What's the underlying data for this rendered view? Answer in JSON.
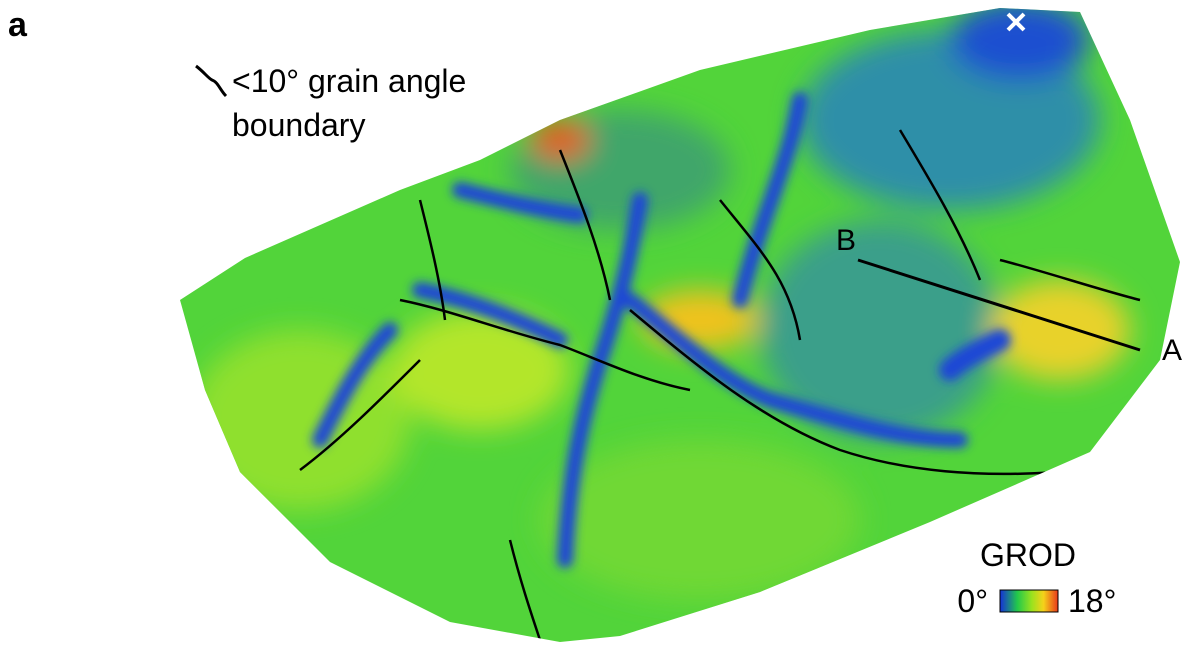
{
  "panel_label": "a",
  "legend": {
    "lines": [
      "<10° grain angle",
      "boundary"
    ]
  },
  "line_labels": {
    "start": "B",
    "end": "A"
  },
  "colorbar": {
    "title": "GROD",
    "min_label": "0°",
    "max_label": "18°"
  }
}
